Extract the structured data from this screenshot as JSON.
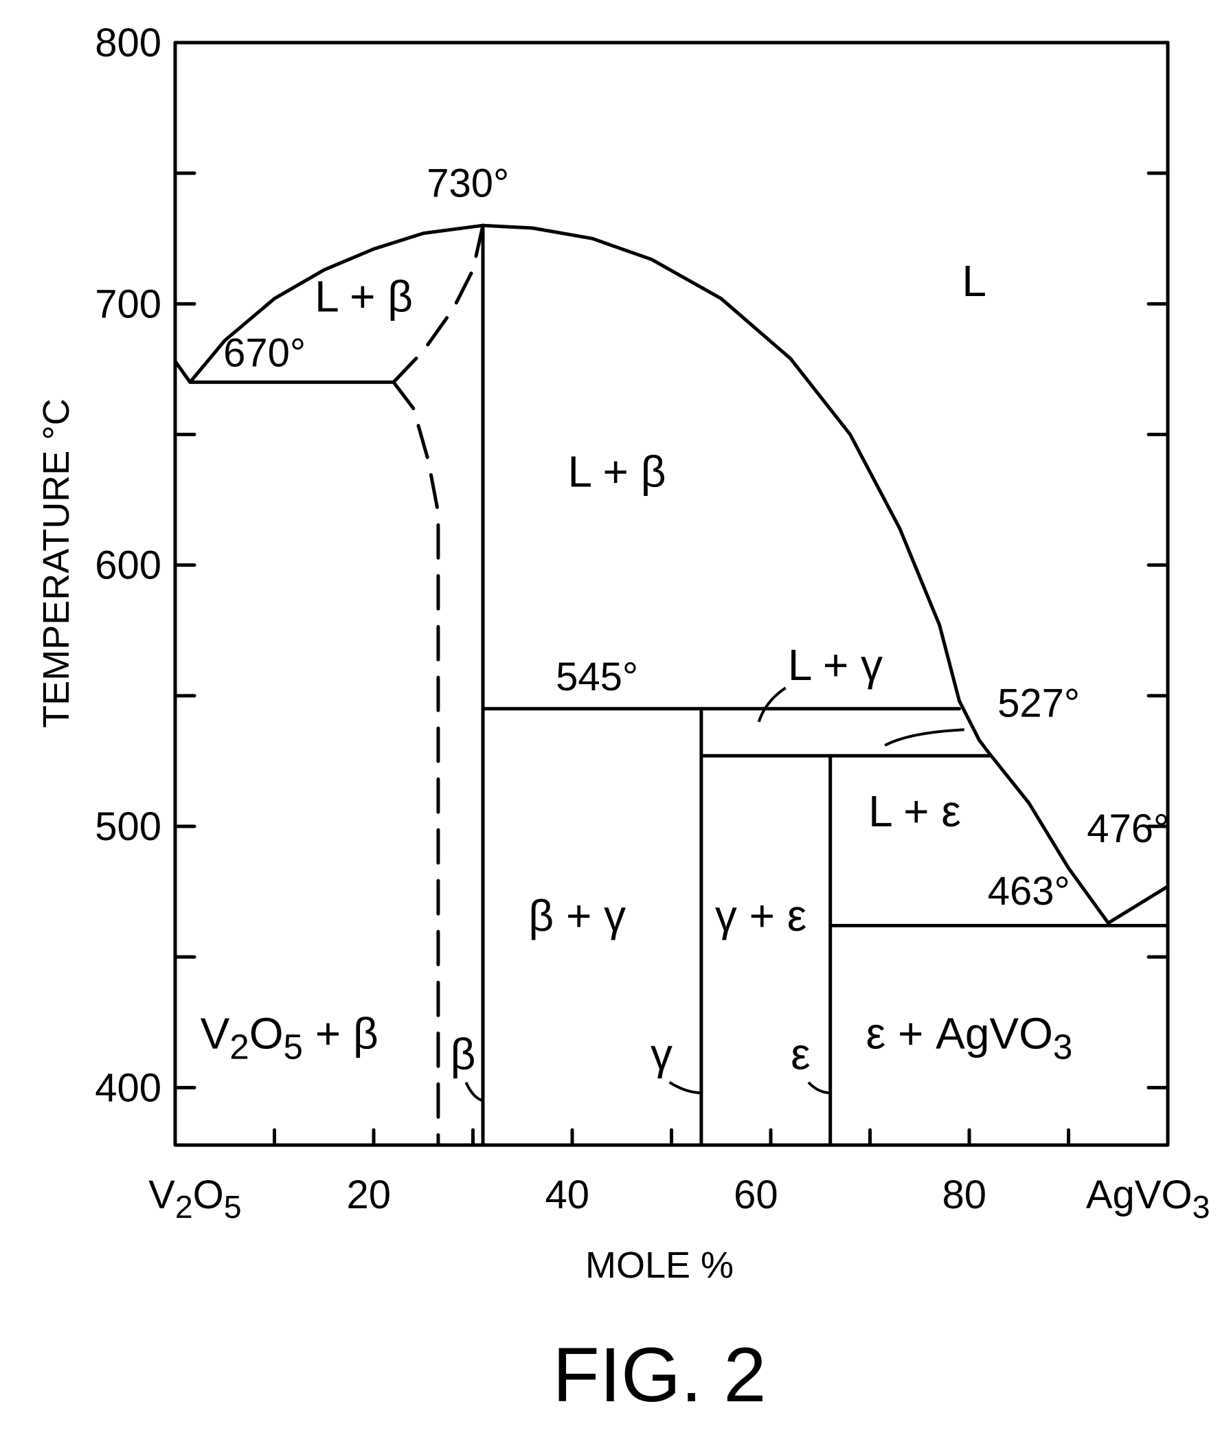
{
  "chart_data": {
    "type": "phase-diagram",
    "xlabel": "MOLE %",
    "ylabel": "TEMPERATURE °C",
    "caption": "FIG. 2",
    "xlim": [
      0,
      100
    ],
    "ylim": [
      378,
      800
    ],
    "x_tick_values": [
      0,
      10,
      20,
      30,
      40,
      50,
      60,
      70,
      80,
      90,
      100
    ],
    "y_tick_values": [
      400,
      450,
      500,
      550,
      600,
      650,
      700,
      750,
      800
    ],
    "x_tick_labels": [
      {
        "x": 2,
        "text": "V₂O₅"
      },
      {
        "x": 19.5,
        "text": "20"
      },
      {
        "x": 39.5,
        "text": "40"
      },
      {
        "x": 58.5,
        "text": "60"
      },
      {
        "x": 79.5,
        "text": "80"
      },
      {
        "x": 98,
        "text": "AgVO₃"
      }
    ],
    "y_tick_labels": [
      {
        "y": 400,
        "text": "400"
      },
      {
        "y": 500,
        "text": "500"
      },
      {
        "y": 600,
        "text": "600"
      },
      {
        "y": 700,
        "text": "700"
      },
      {
        "y": 800,
        "text": "800"
      }
    ],
    "lines": {
      "liquidus_left": [
        [
          0,
          678
        ],
        [
          1.5,
          670
        ],
        [
          5,
          686
        ],
        [
          10,
          702
        ],
        [
          15,
          713
        ],
        [
          20,
          721
        ],
        [
          25,
          727
        ],
        [
          31,
          730
        ]
      ],
      "liquidus_right": [
        [
          31,
          730
        ],
        [
          36,
          729
        ],
        [
          42,
          725
        ],
        [
          48,
          717
        ],
        [
          55,
          702
        ],
        [
          62,
          679
        ],
        [
          68,
          650
        ],
        [
          73,
          614
        ],
        [
          77,
          577
        ],
        [
          79,
          548
        ],
        [
          81,
          533
        ],
        [
          82,
          528
        ],
        [
          86,
          509
        ],
        [
          90,
          484
        ],
        [
          94,
          463
        ],
        [
          97,
          470
        ],
        [
          100,
          477
        ]
      ],
      "eutectic_670": [
        [
          1.5,
          670
        ],
        [
          22,
          670
        ]
      ],
      "solvus_upper_dashed": [
        [
          22,
          670
        ],
        [
          25,
          682
        ],
        [
          28,
          698
        ],
        [
          30,
          713
        ],
        [
          31,
          730
        ]
      ],
      "solvus_lower_dashed": [
        [
          22,
          670
        ],
        [
          24,
          660
        ],
        [
          25.5,
          640
        ],
        [
          26.5,
          620
        ],
        [
          26.5,
          600
        ],
        [
          26.5,
          400
        ],
        [
          26.5,
          378
        ]
      ],
      "beta_vertical": [
        [
          31,
          730
        ],
        [
          31,
          378
        ]
      ],
      "peritectic_545": [
        [
          31,
          545
        ],
        [
          79,
          545
        ]
      ],
      "gamma_vertical": [
        [
          53,
          545
        ],
        [
          53,
          378
        ]
      ],
      "peritectic_527": [
        [
          53,
          527
        ],
        [
          82,
          527
        ]
      ],
      "epsilon_vertical": [
        [
          66,
          527
        ],
        [
          66,
          378
        ]
      ],
      "eutectic_463": [
        [
          66,
          462
        ],
        [
          100,
          462
        ]
      ]
    },
    "region_labels": [
      {
        "text": "L",
        "x": 80.5,
        "y": 703
      },
      {
        "text": "L + β",
        "x": 19,
        "y": 697
      },
      {
        "text": "L + β",
        "x": 44.5,
        "y": 630
      },
      {
        "text": "L + γ",
        "x": 66.5,
        "y": 556
      },
      {
        "text": "L + ε",
        "x": 74.5,
        "y": 500
      },
      {
        "text": "β + γ",
        "x": 40.5,
        "y": 460
      },
      {
        "text": "γ + ε",
        "x": 59,
        "y": 460
      },
      {
        "text": "V₂O₅ + β",
        "x": 11.5,
        "y": 415
      },
      {
        "text": "ε + AgVO₃",
        "x": 80,
        "y": 415
      },
      {
        "text": "β",
        "x": 29,
        "y": 407
      },
      {
        "text": "γ",
        "x": 49,
        "y": 407
      },
      {
        "text": "ε",
        "x": 63,
        "y": 407
      }
    ],
    "temperature_labels": [
      {
        "text": "730°",
        "x": 29.5,
        "y": 741
      },
      {
        "text": "670°",
        "x": 9,
        "y": 676
      },
      {
        "text": "545°",
        "x": 42.5,
        "y": 552
      },
      {
        "text": "527°",
        "x": 87,
        "y": 542
      },
      {
        "text": "476°",
        "x": 96,
        "y": 494
      },
      {
        "text": "463°",
        "x": 86,
        "y": 470
      }
    ]
  }
}
